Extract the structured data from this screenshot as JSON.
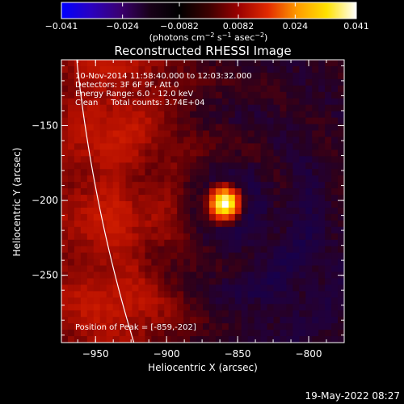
{
  "chart_data": {
    "type": "heatmap",
    "title": "Reconstructed RHESSI Image",
    "xlabel": "Heliocentric X (arcsec)",
    "ylabel": "Heliocentric Y (arcsec)",
    "xlim": [
      -974,
      -775
    ],
    "ylim": [
      -295,
      -106
    ],
    "x_ticks": [
      -950,
      -900,
      -850,
      -800
    ],
    "x_tick_labels": [
      "−950",
      "−900",
      "−850",
      "−800"
    ],
    "y_ticks": [
      -150,
      -200,
      -250
    ],
    "y_tick_labels": [
      "−150",
      "−200",
      "−250"
    ],
    "colorbar": {
      "min": -0.041,
      "max": 0.041,
      "ticks": [
        -0.041,
        -0.024,
        -0.0082,
        0.0082,
        0.024,
        0.041
      ],
      "tick_labels": [
        "−0.041",
        "−0.024",
        "−0.0082",
        "0.0082",
        "0.024",
        "0.041"
      ],
      "label_prefix": "(photons cm",
      "label_exp1": "−2",
      "label_mid": " s",
      "label_exp2": "−1",
      "label_mid2": " asec",
      "label_exp3": "−2",
      "label_suffix": ")",
      "colors": [
        "#0000ff",
        "#2a00c0",
        "#3a0070",
        "#180018",
        "#000000",
        "#3c0000",
        "#9a0000",
        "#e22a00",
        "#ff9c00",
        "#ffe200",
        "#ffffff"
      ]
    },
    "peak": {
      "x": -859,
      "y": -202
    },
    "limb": {
      "center": [
        0,
        0
      ],
      "radius": 969
    },
    "grid": false
  },
  "annotations": {
    "line1": "10-Nov-2014 11:58:40.000 to 12:03:32.000",
    "line2": "Detectors: 3F 6F 9F, Att 0",
    "line3": "Energy Range: 6.0 - 12.0 keV",
    "line4": "Clean     Total counts: 3.74E+04",
    "peak_label": "Position of Peak = [-859,-202]"
  },
  "footer": {
    "date": "19-May-2022 08:27"
  }
}
